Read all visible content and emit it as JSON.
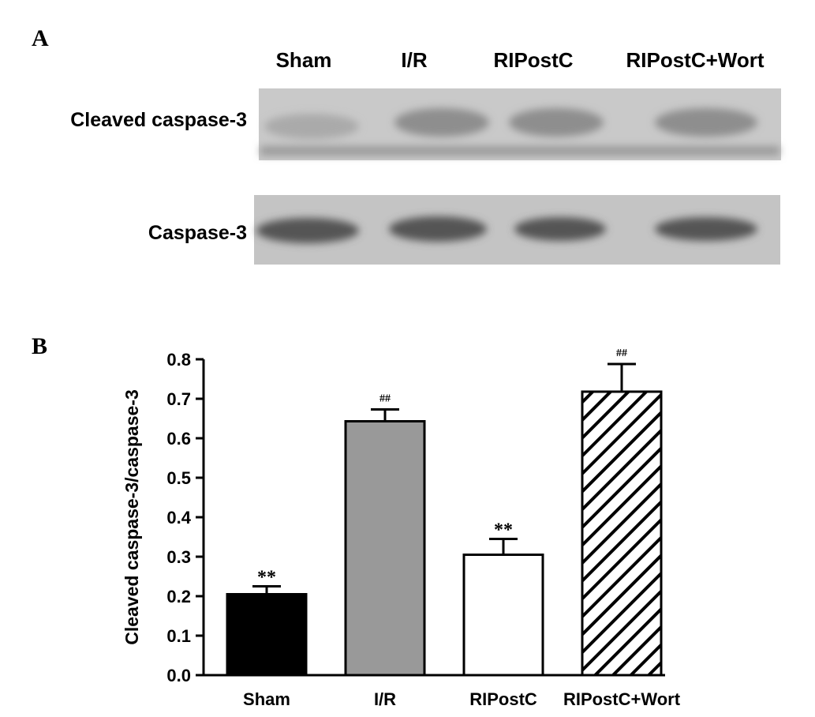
{
  "panels": [
    "A",
    "B"
  ],
  "blot": {
    "lanes": [
      "Sham",
      "I/R",
      "RIPostC",
      "RIPostC+Wort"
    ],
    "rows": [
      "Cleaved caspase-3",
      "Caspase-3"
    ]
  },
  "chart_data": {
    "type": "bar",
    "ylabel": "Cleaved caspase-3/caspase-3",
    "categories": [
      "Sham",
      "I/R",
      "RIPostC",
      "RIPostC+Wort"
    ],
    "values": [
      0.205,
      0.643,
      0.305,
      0.718
    ],
    "errors": [
      0.02,
      0.03,
      0.04,
      0.07
    ],
    "annotations": [
      "**",
      "##",
      "**",
      "##"
    ],
    "colors": [
      "#000000",
      "#999999",
      "#ffffff",
      "#ffffff"
    ],
    "hatch": [
      false,
      false,
      false,
      true
    ],
    "ylim": [
      0,
      0.8
    ],
    "yticks": [
      {
        "value": 0,
        "label": "0.0"
      },
      0.1,
      0.2,
      0.3,
      0.4,
      0.5,
      0.6,
      0.7,
      0.8
    ]
  }
}
